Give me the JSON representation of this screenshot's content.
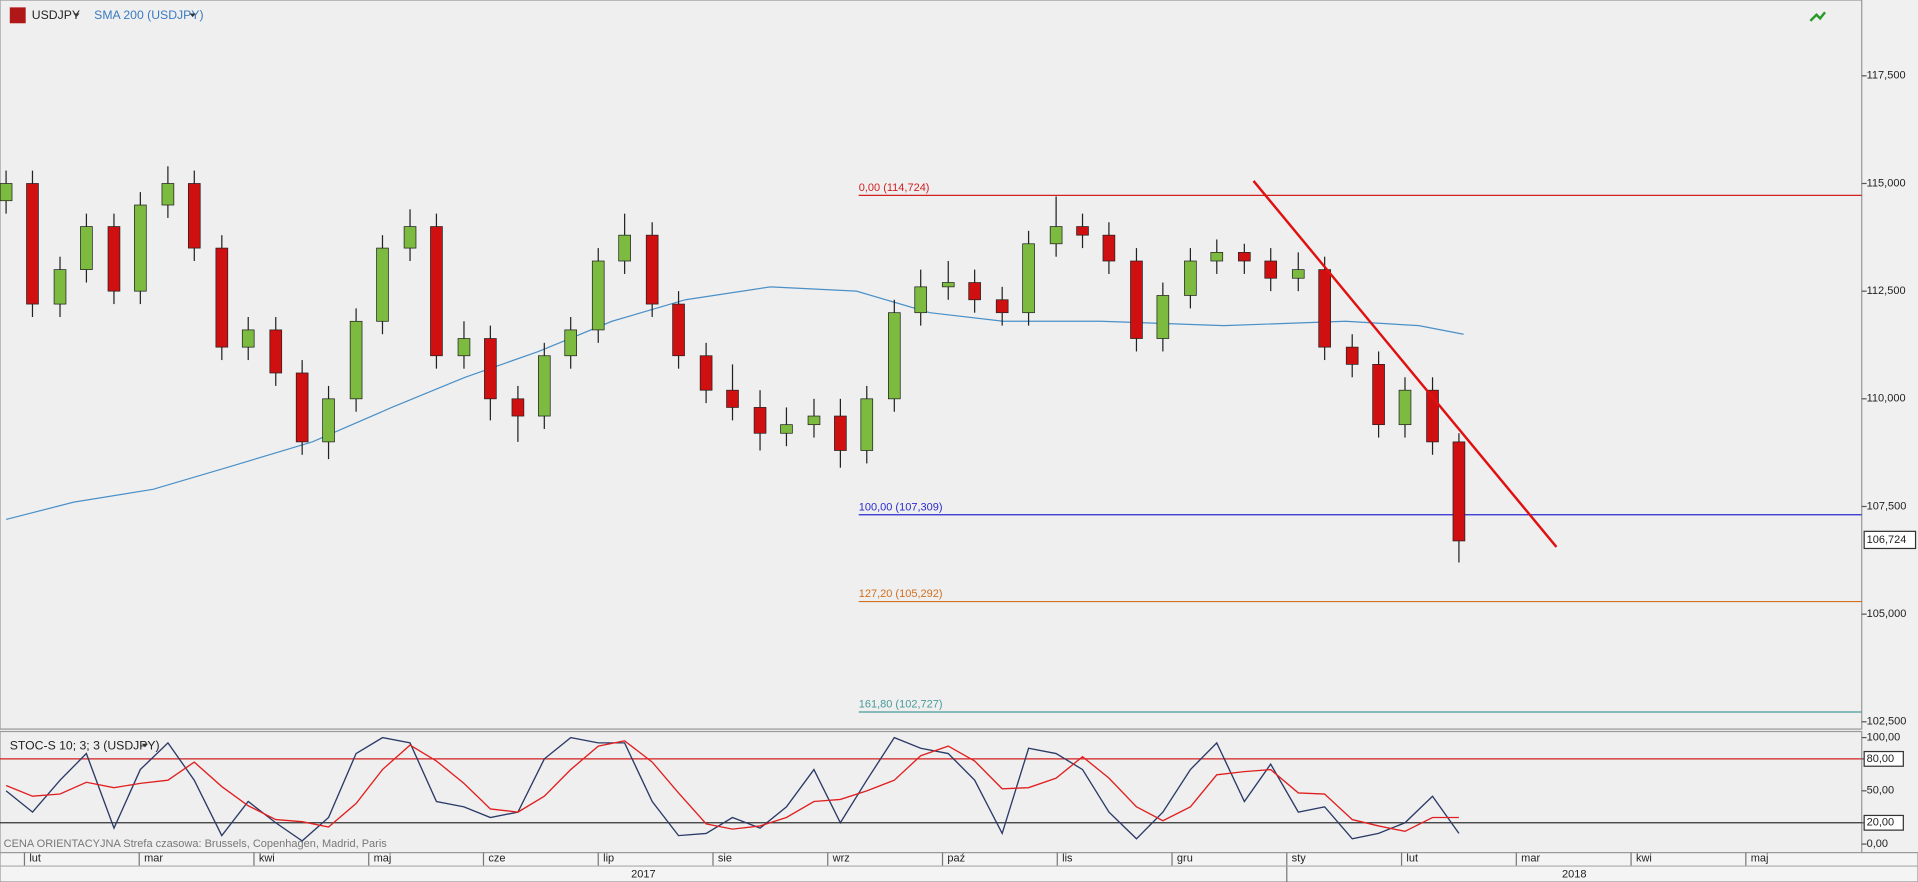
{
  "chart_data": [
    {
      "type": "candlestick",
      "title": "USDJPY",
      "overlay_name": "SMA 200 (USDJPY)",
      "x": [
        0.84,
        1.07,
        1.31,
        1.54,
        1.78,
        2.01,
        2.25,
        2.48,
        2.72,
        2.95,
        3.19,
        3.42,
        3.65,
        3.89,
        4.12,
        4.36,
        4.59,
        4.83,
        5.06,
        5.3,
        5.53,
        5.76,
        6.0,
        6.23,
        6.47,
        6.7,
        6.94,
        7.17,
        7.41,
        7.64,
        7.88,
        8.11,
        8.34,
        8.58,
        8.81,
        9.05,
        9.28,
        9.52,
        9.75,
        9.99,
        10.22,
        10.45,
        10.69,
        10.92,
        11.16,
        11.39,
        11.63,
        11.86,
        12.1,
        12.33,
        12.57,
        12.8,
        13.03,
        13.27,
        13.5
      ],
      "open": [
        114.6,
        115.0,
        112.2,
        113.0,
        114.0,
        112.5,
        114.5,
        115.0,
        113.5,
        111.2,
        111.6,
        110.6,
        109.0,
        110.0,
        111.8,
        113.5,
        114.0,
        111.0,
        111.4,
        110.0,
        109.6,
        111.0,
        111.6,
        113.2,
        113.8,
        112.2,
        111.0,
        110.2,
        109.8,
        109.2,
        109.4,
        109.6,
        108.8,
        110.0,
        112.0,
        112.6,
        112.7,
        112.3,
        112.0,
        113.6,
        114.0,
        113.8,
        113.2,
        111.4,
        112.4,
        113.2,
        113.4,
        113.2,
        112.8,
        113.0,
        111.2,
        110.8,
        109.4,
        110.2,
        109.0
      ],
      "high": [
        115.3,
        115.3,
        113.3,
        114.3,
        114.3,
        114.8,
        115.4,
        115.3,
        113.8,
        111.9,
        111.9,
        110.9,
        110.3,
        112.1,
        113.8,
        114.4,
        114.3,
        111.8,
        111.7,
        110.3,
        111.3,
        111.9,
        113.5,
        114.3,
        114.1,
        112.5,
        111.3,
        110.8,
        110.2,
        109.8,
        110.0,
        110.0,
        110.3,
        112.3,
        113.0,
        113.2,
        113.0,
        112.6,
        113.9,
        114.7,
        114.3,
        114.1,
        113.5,
        112.7,
        113.5,
        113.7,
        113.6,
        113.5,
        113.4,
        113.3,
        111.5,
        111.1,
        110.5,
        110.5,
        109.2
      ],
      "low": [
        114.3,
        111.9,
        111.9,
        112.7,
        112.2,
        112.2,
        114.2,
        113.2,
        110.9,
        110.9,
        110.3,
        108.7,
        108.6,
        109.7,
        111.5,
        113.2,
        110.7,
        110.7,
        109.5,
        109.0,
        109.3,
        110.7,
        111.3,
        112.9,
        111.9,
        110.7,
        109.9,
        109.5,
        108.8,
        108.9,
        109.1,
        108.4,
        108.5,
        109.7,
        111.7,
        112.3,
        112.0,
        111.7,
        111.7,
        113.3,
        113.5,
        112.9,
        111.1,
        111.1,
        112.1,
        112.9,
        112.9,
        112.5,
        112.5,
        110.9,
        110.5,
        109.1,
        109.1,
        108.7,
        106.2
      ],
      "close": [
        115.0,
        112.2,
        113.0,
        114.0,
        112.5,
        114.5,
        115.0,
        113.5,
        111.2,
        111.6,
        110.6,
        109.0,
        110.0,
        111.8,
        113.5,
        114.0,
        111.0,
        111.4,
        110.0,
        109.6,
        111.0,
        111.6,
        113.2,
        113.8,
        112.2,
        111.0,
        110.2,
        109.8,
        109.2,
        109.4,
        109.6,
        108.8,
        110.0,
        112.0,
        112.6,
        112.7,
        112.3,
        112.0,
        113.6,
        114.0,
        113.8,
        113.2,
        111.4,
        112.4,
        113.2,
        113.4,
        113.2,
        112.8,
        113.0,
        111.2,
        110.8,
        109.4,
        110.2,
        109.0,
        106.7
      ],
      "up_color": "#7cbb3f",
      "down_color": "#d01010",
      "sma": {
        "color": "#4a90c8",
        "x": [
          0.84,
          1.43,
          2.12,
          2.76,
          3.51,
          4.2,
          4.84,
          5.48,
          6.12,
          6.76,
          7.5,
          8.25,
          8.89,
          9.53,
          10.38,
          11.45,
          12.51,
          13.15,
          13.54
        ],
        "values": [
          107.2,
          107.6,
          107.9,
          108.4,
          109.0,
          109.8,
          110.5,
          111.1,
          111.8,
          112.3,
          112.6,
          112.5,
          112.0,
          111.8,
          111.8,
          111.7,
          111.8,
          111.7,
          111.5
        ]
      },
      "levels": [
        {
          "value": 114.724,
          "label": "0,00 (114,724)",
          "color": "#d02020"
        },
        {
          "value": 107.309,
          "label": "100,00 (107,309)",
          "color": "#2a2ad0"
        },
        {
          "value": 105.292,
          "label": "127,20 (105,292)",
          "color": "#d07020"
        },
        {
          "value": 102.727,
          "label": "161,80 (102,727)",
          "color": "#4a9a9a"
        }
      ],
      "levels_start": 8.27,
      "trendline": {
        "x": [
          11.71,
          14.35
        ],
        "values": [
          115.06,
          106.56
        ],
        "color": "#e01010"
      },
      "last_price": {
        "value": 106.724,
        "label": "106,724"
      },
      "xlim": [
        0.787,
        17.01
      ],
      "ylim": [
        102.36,
        119.26
      ],
      "yticks": [
        {
          "value": 102.5,
          "label": "102,500"
        },
        {
          "value": 105,
          "label": "105,000"
        },
        {
          "value": 107.5,
          "label": "107,500"
        },
        {
          "value": 110,
          "label": "110,000"
        },
        {
          "value": 112.5,
          "label": "112,500"
        },
        {
          "value": 115,
          "label": "115,000"
        },
        {
          "value": 117.5,
          "label": "117,500"
        }
      ],
      "grid": false
    },
    {
      "type": "line",
      "title": "STOC-S 10; 3; 3 (USDJPY)",
      "x": [
        0.84,
        1.07,
        1.31,
        1.54,
        1.78,
        2.01,
        2.25,
        2.48,
        2.72,
        2.95,
        3.19,
        3.42,
        3.65,
        3.89,
        4.12,
        4.36,
        4.59,
        4.83,
        5.06,
        5.3,
        5.53,
        5.76,
        6.0,
        6.23,
        6.47,
        6.7,
        6.94,
        7.17,
        7.41,
        7.64,
        7.88,
        8.11,
        8.34,
        8.58,
        8.81,
        9.05,
        9.28,
        9.52,
        9.75,
        9.99,
        10.22,
        10.45,
        10.69,
        10.92,
        11.16,
        11.39,
        11.63,
        11.86,
        12.1,
        12.33,
        12.57,
        12.8,
        13.03,
        13.27,
        13.5
      ],
      "series": [
        {
          "color": "#2b3a67",
          "values": [
            50,
            30,
            60,
            85,
            15,
            70,
            95,
            60,
            8,
            40,
            20,
            3,
            25,
            85,
            100,
            95,
            40,
            35,
            25,
            30,
            80,
            100,
            95,
            95,
            40,
            8,
            10,
            25,
            15,
            35,
            70,
            20,
            60,
            100,
            90,
            85,
            60,
            10,
            90,
            85,
            70,
            30,
            5,
            30,
            70,
            95,
            40,
            75,
            30,
            35,
            5,
            10,
            20,
            45,
            10
          ]
        },
        {
          "color": "#e02020",
          "values": [
            55,
            45,
            47,
            58,
            53,
            57,
            60,
            77,
            54,
            36,
            23,
            21,
            16,
            38,
            70,
            93,
            78,
            57,
            33,
            30,
            45,
            70,
            92,
            97,
            77,
            48,
            19,
            14,
            17,
            25,
            40,
            42,
            50,
            60,
            83,
            92,
            78,
            52,
            53,
            62,
            82,
            62,
            35,
            22,
            35,
            65,
            68,
            70,
            48,
            47,
            23,
            17,
            12,
            25,
            25
          ]
        }
      ],
      "bands": [
        {
          "value": 80,
          "color": "#d02020"
        },
        {
          "value": 20,
          "color": "#333333"
        }
      ],
      "xlim": [
        0.787,
        17.01
      ],
      "ylim": [
        -8,
        105.7
      ],
      "yticks": [
        {
          "value": 0,
          "label": "0,00"
        },
        {
          "value": 20,
          "label": "20,00"
        },
        {
          "value": 50,
          "label": "50,00"
        },
        {
          "value": 80,
          "label": "80,00"
        },
        {
          "value": 100,
          "label": "100,00"
        }
      ]
    }
  ],
  "xticks": [
    {
      "value": 1,
      "label": "lut"
    },
    {
      "value": 2,
      "label": "mar"
    },
    {
      "value": 3,
      "label": "kwi"
    },
    {
      "value": 4,
      "label": "maj"
    },
    {
      "value": 5,
      "label": "cze"
    },
    {
      "value": 6,
      "label": "lip"
    },
    {
      "value": 7,
      "label": "sie"
    },
    {
      "value": 8,
      "label": "wrz"
    },
    {
      "value": 9,
      "label": "paź"
    },
    {
      "value": 10,
      "label": "lis"
    },
    {
      "value": 11,
      "label": "gru"
    },
    {
      "value": 12,
      "label": "sty"
    },
    {
      "value": 13,
      "label": "lut"
    },
    {
      "value": 14,
      "label": "mar"
    },
    {
      "value": 15,
      "label": "kwi"
    },
    {
      "value": 16,
      "label": "maj"
    }
  ],
  "years": [
    "2017",
    "2018"
  ],
  "footer": "CENA ORIENTACYJNA   Strefa czasowa: Brussels, Copenhagen, Madrid, Paris"
}
